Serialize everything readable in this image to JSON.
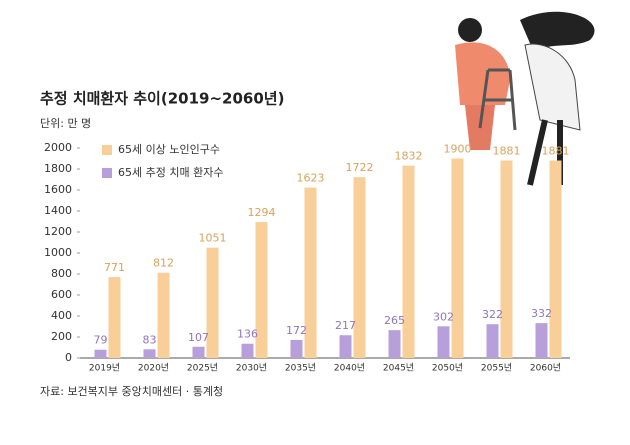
{
  "chart_data": {
    "type": "bar",
    "title": "추정 치매환자 추이(2019~2060년)",
    "subtitle": "단위: 만 명",
    "source": "자료: 보건복지부 중앙치매센터 · 통계청",
    "categories": [
      "2019년",
      "2020년",
      "2025년",
      "2030년",
      "2035년",
      "2040년",
      "2045년",
      "2050년",
      "2055년",
      "2060년"
    ],
    "series": [
      {
        "name": "65세 이상 노인인구수",
        "color": "#f8cf98",
        "label_color": "#d6a45e",
        "values": [
          771,
          812,
          1051,
          1294,
          1623,
          1722,
          1832,
          1900,
          1881,
          1881
        ]
      },
      {
        "name": "65세 추정 치매 환자수",
        "color": "#b7a0da",
        "label_color": "#8e76bf",
        "values": [
          79,
          83,
          107,
          136,
          172,
          217,
          265,
          302,
          322,
          332
        ]
      }
    ],
    "ylim": [
      0,
      2000
    ],
    "yticks": [
      0,
      200,
      400,
      600,
      800,
      1000,
      1200,
      1400,
      1600,
      1800,
      2000
    ]
  }
}
